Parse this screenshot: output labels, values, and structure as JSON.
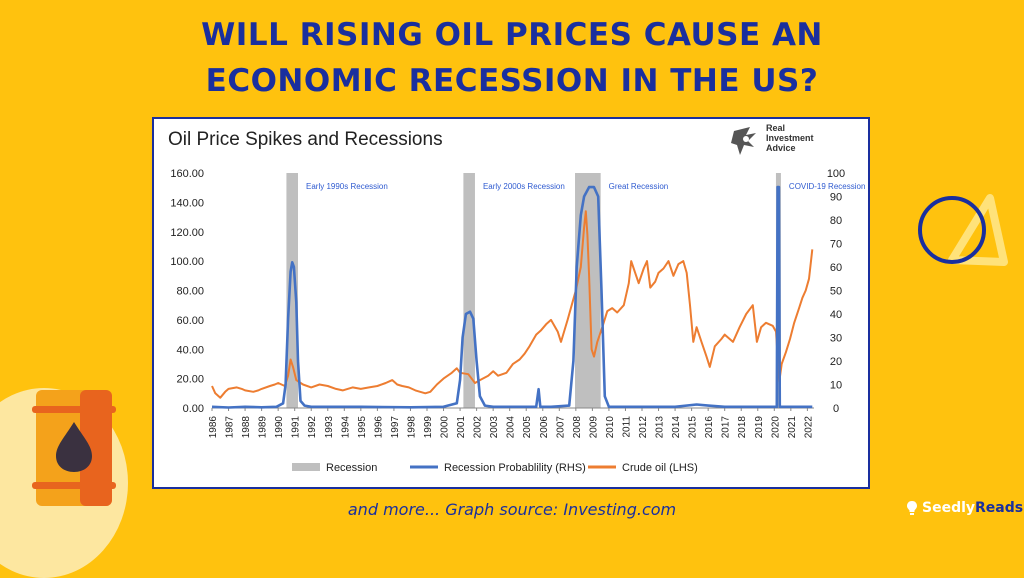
{
  "headline": {
    "line1": "WILL RISING OIL PRICES CAUSE AN",
    "line2": "ECONOMIC RECESSION IN THE US?"
  },
  "footer": {
    "caption": "and more... Graph source: Investing.com"
  },
  "brand": {
    "part1": "Seedly",
    "part2": "Reads"
  },
  "colors": {
    "background": "#FFC20E",
    "headline": "#1A2F9E",
    "crude_oil": "#ED7D31",
    "recession_probability": "#4472C4",
    "recession_band": "#BFBFBF",
    "recession_label": "#2F5BD0"
  },
  "icons": [
    "oil-barrel-icon",
    "oil-drop-icon",
    "circle-triangle-decoration-icon",
    "lightbulb-icon",
    "eagle-logo-icon"
  ],
  "chart_data": {
    "type": "line",
    "title": "Oil Price Spikes and Recessions",
    "source_logo_text": [
      "Real",
      "Investment",
      "Advice"
    ],
    "x_ticks": [
      "1986",
      "1987",
      "1988",
      "1989",
      "1990",
      "1991",
      "1992",
      "1993",
      "1994",
      "1995",
      "1996",
      "1997",
      "1998",
      "1999",
      "2000",
      "2001",
      "2002",
      "2003",
      "2004",
      "2005",
      "2006",
      "2007",
      "2008",
      "2009",
      "2010",
      "2011",
      "2012",
      "2013",
      "2014",
      "2015",
      "2016",
      "2017",
      "2018",
      "2019",
      "2020",
      "2021",
      "2022"
    ],
    "xlim": [
      1986,
      2022.4
    ],
    "y_left": {
      "lim": [
        0,
        160
      ],
      "ticks": [
        "0.00",
        "20.00",
        "40.00",
        "60.00",
        "80.00",
        "100.00",
        "120.00",
        "140.00",
        "160.00"
      ]
    },
    "y_right": {
      "lim": [
        0,
        100
      ],
      "ticks": [
        "0",
        "10",
        "20",
        "30",
        "40",
        "50",
        "60",
        "70",
        "80",
        "90",
        "100"
      ]
    },
    "recessions": [
      {
        "label": "Early 1990s Recession",
        "start": 1990.5,
        "end": 1991.2
      },
      {
        "label": "Early 2000s Recession",
        "start": 2001.2,
        "end": 2001.9
      },
      {
        "label": "Great Recession",
        "start": 2007.95,
        "end": 2009.5
      },
      {
        "label": "COVID-19 Recession",
        "start": 2020.1,
        "end": 2020.4
      }
    ],
    "series": [
      {
        "name": "Crude oil (LHS)",
        "axis": "left",
        "points": [
          [
            1986.0,
            15
          ],
          [
            1986.2,
            10
          ],
          [
            1986.5,
            7
          ],
          [
            1986.8,
            11
          ],
          [
            1987.0,
            13
          ],
          [
            1987.5,
            14
          ],
          [
            1987.8,
            13
          ],
          [
            1988.0,
            12
          ],
          [
            1988.5,
            11
          ],
          [
            1988.8,
            12
          ],
          [
            1989.0,
            13
          ],
          [
            1989.5,
            15
          ],
          [
            1989.8,
            16
          ],
          [
            1990.0,
            17
          ],
          [
            1990.4,
            15
          ],
          [
            1990.6,
            22
          ],
          [
            1990.75,
            33
          ],
          [
            1990.9,
            28
          ],
          [
            1991.1,
            19
          ],
          [
            1991.5,
            16
          ],
          [
            1992.0,
            14
          ],
          [
            1992.5,
            16
          ],
          [
            1993.0,
            15
          ],
          [
            1993.5,
            13
          ],
          [
            1993.9,
            12
          ],
          [
            1994.2,
            13
          ],
          [
            1994.5,
            14
          ],
          [
            1995.0,
            13
          ],
          [
            1995.5,
            14
          ],
          [
            1996.0,
            15
          ],
          [
            1996.5,
            17
          ],
          [
            1996.9,
            19
          ],
          [
            1997.2,
            16
          ],
          [
            1997.5,
            15
          ],
          [
            1997.9,
            14
          ],
          [
            1998.3,
            12
          ],
          [
            1998.9,
            10
          ],
          [
            1999.2,
            11
          ],
          [
            1999.6,
            16
          ],
          [
            2000.0,
            20
          ],
          [
            2000.5,
            24
          ],
          [
            2000.8,
            27
          ],
          [
            2001.0,
            24
          ],
          [
            2001.5,
            23
          ],
          [
            2001.9,
            17
          ],
          [
            2002.2,
            19
          ],
          [
            2002.7,
            22
          ],
          [
            2003.0,
            25
          ],
          [
            2003.3,
            22
          ],
          [
            2003.8,
            24
          ],
          [
            2004.2,
            30
          ],
          [
            2004.6,
            33
          ],
          [
            2004.9,
            37
          ],
          [
            2005.2,
            42
          ],
          [
            2005.6,
            50
          ],
          [
            2005.9,
            53
          ],
          [
            2006.2,
            57
          ],
          [
            2006.5,
            60
          ],
          [
            2006.9,
            52
          ],
          [
            2007.1,
            45
          ],
          [
            2007.5,
            60
          ],
          [
            2007.8,
            72
          ],
          [
            2008.0,
            80
          ],
          [
            2008.3,
            96
          ],
          [
            2008.5,
            123
          ],
          [
            2008.6,
            134
          ],
          [
            2008.7,
            118
          ],
          [
            2008.8,
            90
          ],
          [
            2008.95,
            40
          ],
          [
            2009.1,
            35
          ],
          [
            2009.3,
            45
          ],
          [
            2009.6,
            55
          ],
          [
            2009.9,
            66
          ],
          [
            2010.2,
            68
          ],
          [
            2010.5,
            65
          ],
          [
            2010.9,
            70
          ],
          [
            2011.2,
            85
          ],
          [
            2011.35,
            100
          ],
          [
            2011.5,
            95
          ],
          [
            2011.8,
            85
          ],
          [
            2012.1,
            95
          ],
          [
            2012.3,
            100
          ],
          [
            2012.5,
            82
          ],
          [
            2012.8,
            86
          ],
          [
            2013.0,
            92
          ],
          [
            2013.3,
            95
          ],
          [
            2013.6,
            100
          ],
          [
            2013.9,
            90
          ],
          [
            2014.2,
            98
          ],
          [
            2014.5,
            100
          ],
          [
            2014.7,
            92
          ],
          [
            2014.9,
            70
          ],
          [
            2015.1,
            45
          ],
          [
            2015.3,
            55
          ],
          [
            2015.6,
            45
          ],
          [
            2015.9,
            35
          ],
          [
            2016.1,
            28
          ],
          [
            2016.4,
            42
          ],
          [
            2016.8,
            47
          ],
          [
            2017.0,
            50
          ],
          [
            2017.5,
            45
          ],
          [
            2017.9,
            55
          ],
          [
            2018.3,
            64
          ],
          [
            2018.7,
            70
          ],
          [
            2018.95,
            45
          ],
          [
            2019.2,
            55
          ],
          [
            2019.5,
            58
          ],
          [
            2019.9,
            56
          ],
          [
            2020.1,
            52
          ],
          [
            2020.3,
            18
          ],
          [
            2020.45,
            30
          ],
          [
            2020.7,
            38
          ],
          [
            2020.95,
            47
          ],
          [
            2021.2,
            58
          ],
          [
            2021.5,
            68
          ],
          [
            2021.7,
            75
          ],
          [
            2021.9,
            80
          ],
          [
            2022.1,
            88
          ],
          [
            2022.3,
            108
          ]
        ]
      },
      {
        "name": "Recession Probablility (RHS)",
        "axis": "right",
        "points": [
          [
            1986.0,
            0.5
          ],
          [
            1987.0,
            0.2
          ],
          [
            1988.0,
            0.5
          ],
          [
            1989.0,
            0.3
          ],
          [
            1989.9,
            0.5
          ],
          [
            1990.3,
            2
          ],
          [
            1990.45,
            10
          ],
          [
            1990.6,
            38
          ],
          [
            1990.75,
            58
          ],
          [
            1990.85,
            62
          ],
          [
            1990.95,
            60
          ],
          [
            1991.1,
            45
          ],
          [
            1991.2,
            20
          ],
          [
            1991.35,
            3
          ],
          [
            1991.6,
            1
          ],
          [
            1992.0,
            0.5
          ],
          [
            1995.0,
            0.5
          ],
          [
            1998.0,
            0.3
          ],
          [
            2000.0,
            0.5
          ],
          [
            2000.8,
            2
          ],
          [
            2001.0,
            12
          ],
          [
            2001.15,
            30
          ],
          [
            2001.35,
            40
          ],
          [
            2001.6,
            41
          ],
          [
            2001.8,
            38
          ],
          [
            2002.0,
            20
          ],
          [
            2002.2,
            5
          ],
          [
            2002.5,
            1
          ],
          [
            2003.0,
            0.5
          ],
          [
            2005.6,
            0.5
          ],
          [
            2005.75,
            8
          ],
          [
            2005.85,
            0.5
          ],
          [
            2006.5,
            0.5
          ],
          [
            2007.6,
            1
          ],
          [
            2007.85,
            20
          ],
          [
            2008.05,
            60
          ],
          [
            2008.3,
            82
          ],
          [
            2008.5,
            90
          ],
          [
            2008.8,
            94
          ],
          [
            2009.1,
            94
          ],
          [
            2009.35,
            90
          ],
          [
            2009.55,
            50
          ],
          [
            2009.75,
            5
          ],
          [
            2010.0,
            0.5
          ],
          [
            2014.0,
            0.5
          ],
          [
            2015.3,
            1.5
          ],
          [
            2016.0,
            1
          ],
          [
            2017.0,
            0.5
          ],
          [
            2019.9,
            0.5
          ],
          [
            2020.15,
            0.5
          ],
          [
            2020.2,
            94
          ],
          [
            2020.28,
            94
          ],
          [
            2020.33,
            0.5
          ],
          [
            2021.0,
            0.5
          ],
          [
            2022.3,
            0.5
          ]
        ]
      }
    ],
    "legend": [
      {
        "label": "Recession",
        "kind": "band"
      },
      {
        "label": "Recession Probablility (RHS)",
        "kind": "line-blue"
      },
      {
        "label": "Crude oil (LHS)",
        "kind": "line-orange"
      }
    ],
    "legend_position": "bottom",
    "grid": false
  }
}
